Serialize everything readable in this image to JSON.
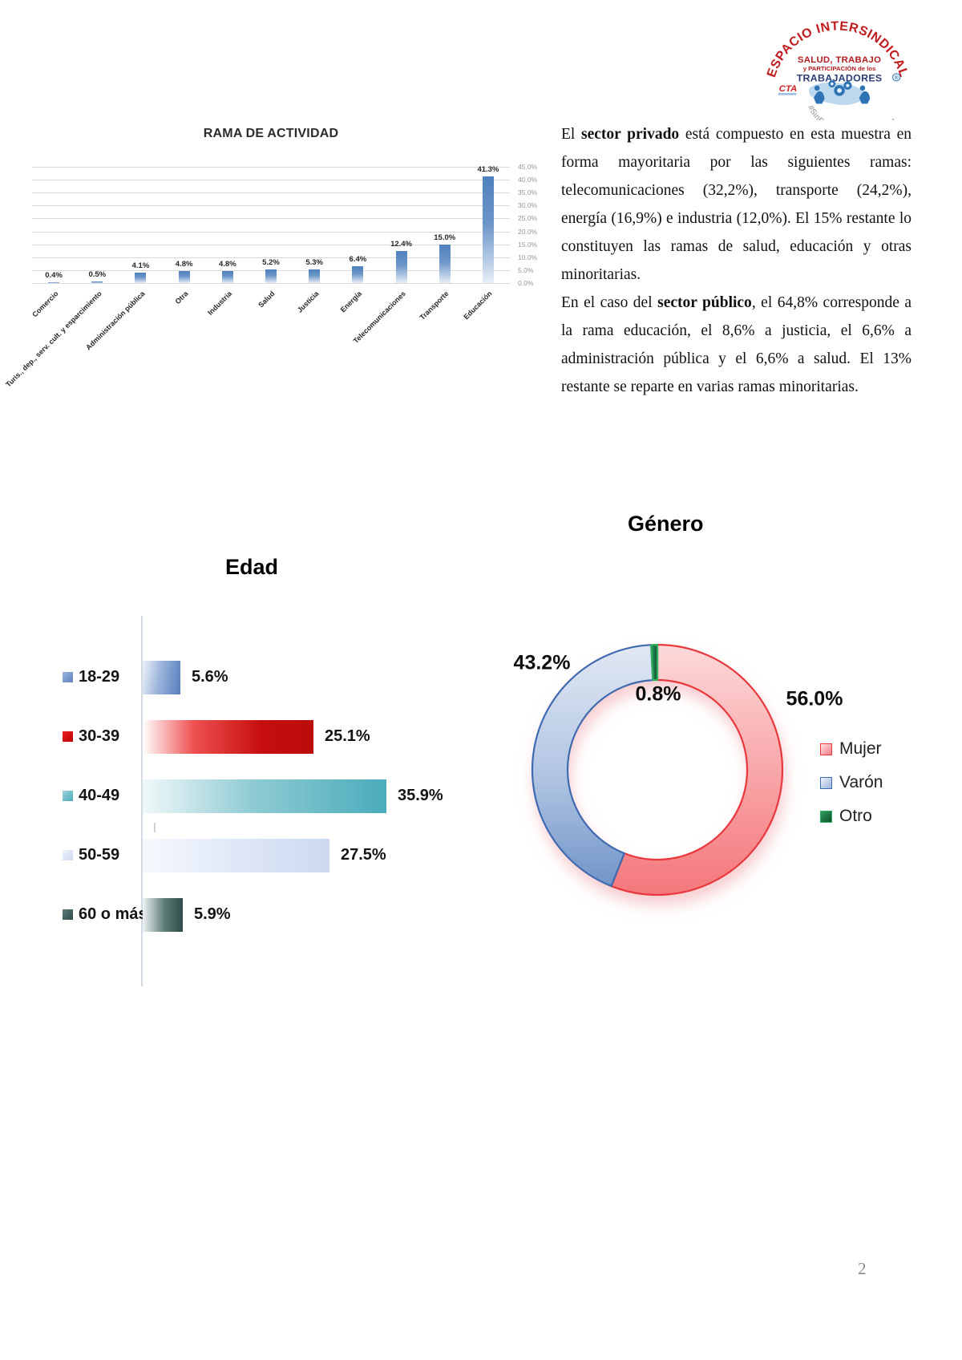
{
  "page": {
    "number": "2"
  },
  "logo": {
    "arc_text": "ESPACIO INTERSINDICAL",
    "line1": "SALUD, TRABAJO",
    "line2": "y PARTICIPACIÓN de los",
    "line3": "TRABAJADORES",
    "cta": "CTA",
    "registered": "®",
    "hash1": "#SinPrevención",
    "hash2": "NoHay",
    "hash3": "Salud",
    "colors": {
      "red": "#c11b1e",
      "navy": "#2b3c75",
      "blue": "#2e74b5"
    }
  },
  "paragraphs": [
    {
      "pre": "El ",
      "bold": "sector privado",
      "post": " está compuesto en esta muestra en forma mayoritaria por las siguientes ramas: telecomunicaciones (32,2%), transporte (24,2%), energía (16,9%) e industria (12,0%). El 15% restante lo constituyen las ramas de salud, educación y otras minoritarias."
    },
    {
      "pre": "En el caso del ",
      "bold": "sector público",
      "post": ", el 64,8% corresponde a la rama educación, el 8,6% a justicia, el 6,6% a administración pública y el 6,6% a salud. El 13% restante se reparte en varias ramas minoritarias."
    }
  ],
  "chart_data": [
    {
      "id": "rama",
      "type": "bar",
      "title": "RAMA DE ACTIVIDAD",
      "categories": [
        "Comercio",
        "Turis., dep., serv. cult. y esparcimiento",
        "Administración pública",
        "Otra",
        "Industria",
        "Salud",
        "Justicia",
        "Energía",
        "Telecomunicaciones",
        "Transporte",
        "Educación"
      ],
      "values": [
        0.4,
        0.5,
        4.1,
        4.8,
        4.8,
        5.2,
        5.3,
        6.4,
        12.4,
        15.0,
        41.3
      ],
      "labels": [
        "0.4%",
        "0.5%",
        "4.1%",
        "4.8%",
        "4.8%",
        "5.2%",
        "5.3%",
        "6.4%",
        "12.4%",
        "15.0%",
        "41.3%"
      ],
      "xlabel": "",
      "ylabel": "",
      "ylim": [
        0,
        45
      ],
      "yticks": [
        "45.0%",
        "40.0%",
        "35.0%",
        "30.0%",
        "25.0%",
        "20.0%",
        "15.0%",
        "10.0%",
        "5.0%",
        "0.0%"
      ],
      "axis_side": "right",
      "grid": true,
      "bar_color": "#4f81bd"
    },
    {
      "id": "edad",
      "type": "bar",
      "orientation": "horizontal",
      "title": "Edad",
      "categories": [
        "18-29",
        "30-39",
        "40-49",
        "50-59",
        "60 o más"
      ],
      "values": [
        5.6,
        25.1,
        35.9,
        27.5,
        5.9
      ],
      "labels": [
        "5.6%",
        "25.1%",
        "35.9%",
        "27.5%",
        "5.9%"
      ],
      "grid": false,
      "colors": [
        "#5b82c0",
        "#c60e0e",
        "#4aacbb",
        "#ccd9f0",
        "#2f4a48"
      ]
    },
    {
      "id": "genero",
      "type": "pie",
      "subtype": "donut",
      "title": "Género",
      "legend_position": "right",
      "slices": [
        {
          "label": "Mujer",
          "value": 56.0,
          "display": "56.0%",
          "color": "#f4777b",
          "stroke": "#e8383d"
        },
        {
          "label": "Varón",
          "value": 43.2,
          "display": "43.2%",
          "color": "#a8bede",
          "stroke": "#3e6ab0"
        },
        {
          "label": "Otro",
          "value": 0.8,
          "display": "0.8%",
          "color": "#156239",
          "stroke": "#2db061"
        }
      ]
    }
  ]
}
